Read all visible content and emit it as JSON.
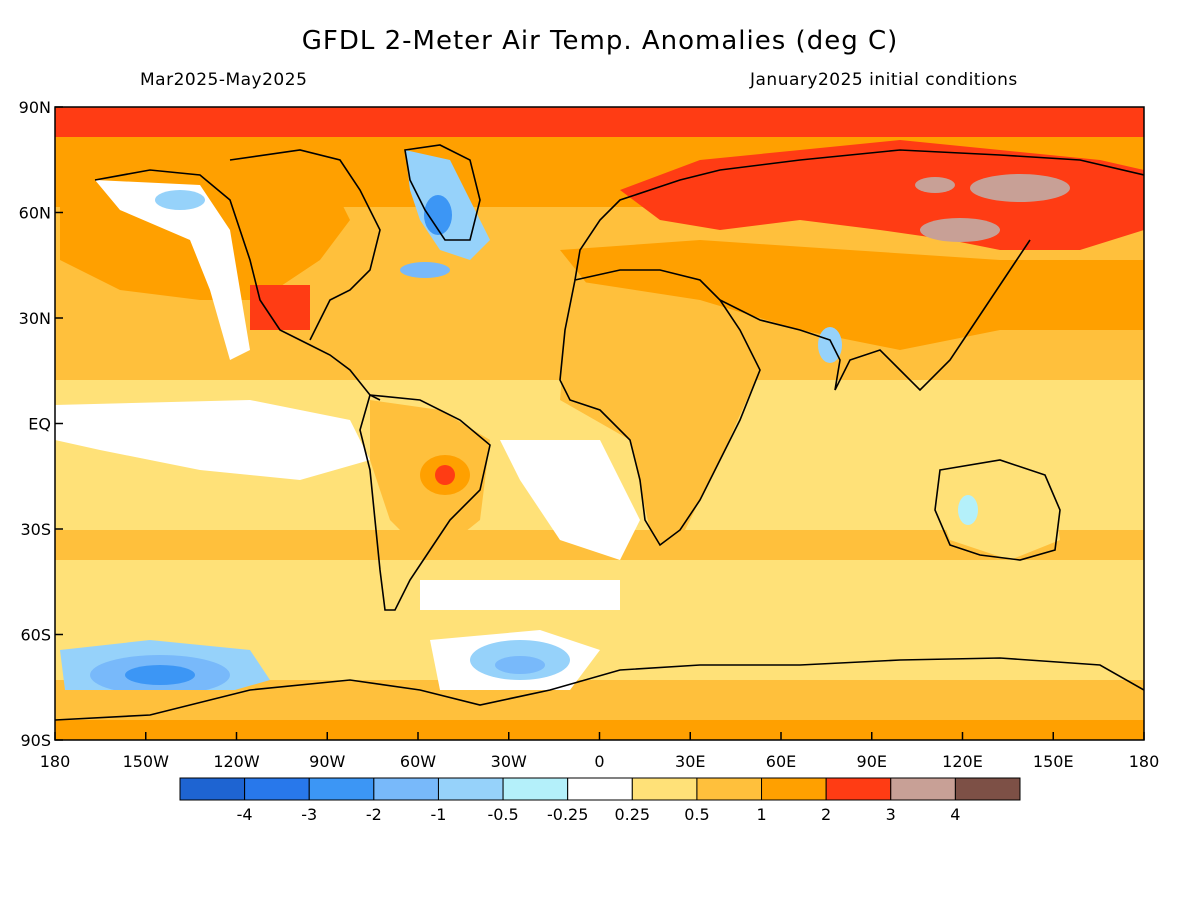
{
  "title": "GFDL 2-Meter Air Temp. Anomalies (deg C)",
  "season": "Mar2025-May2025",
  "init": "January2025 initial conditions",
  "lat_labels": [
    "90N",
    "60N",
    "30N",
    "EQ",
    "30S",
    "60S",
    "90S"
  ],
  "lon_labels": [
    "180",
    "150W",
    "120W",
    "90W",
    "60W",
    "30W",
    "0",
    "30E",
    "60E",
    "90E",
    "120E",
    "150E",
    "180"
  ],
  "colorbar": {
    "colors": [
      "#1e64d2",
      "#2878eb",
      "#3c96f5",
      "#78b9fa",
      "#96d2fa",
      "#b4f0fa",
      "#ffffff",
      "#ffe178",
      "#ffc03c",
      "#ffa000",
      "#ff3c14",
      "#c8a096",
      "#7d5046"
    ],
    "labels": [
      "-4",
      "-3",
      "-2",
      "-1",
      "-0.5",
      "-0.25",
      "0.25",
      "0.5",
      "1",
      "2",
      "3",
      "4"
    ]
  }
}
